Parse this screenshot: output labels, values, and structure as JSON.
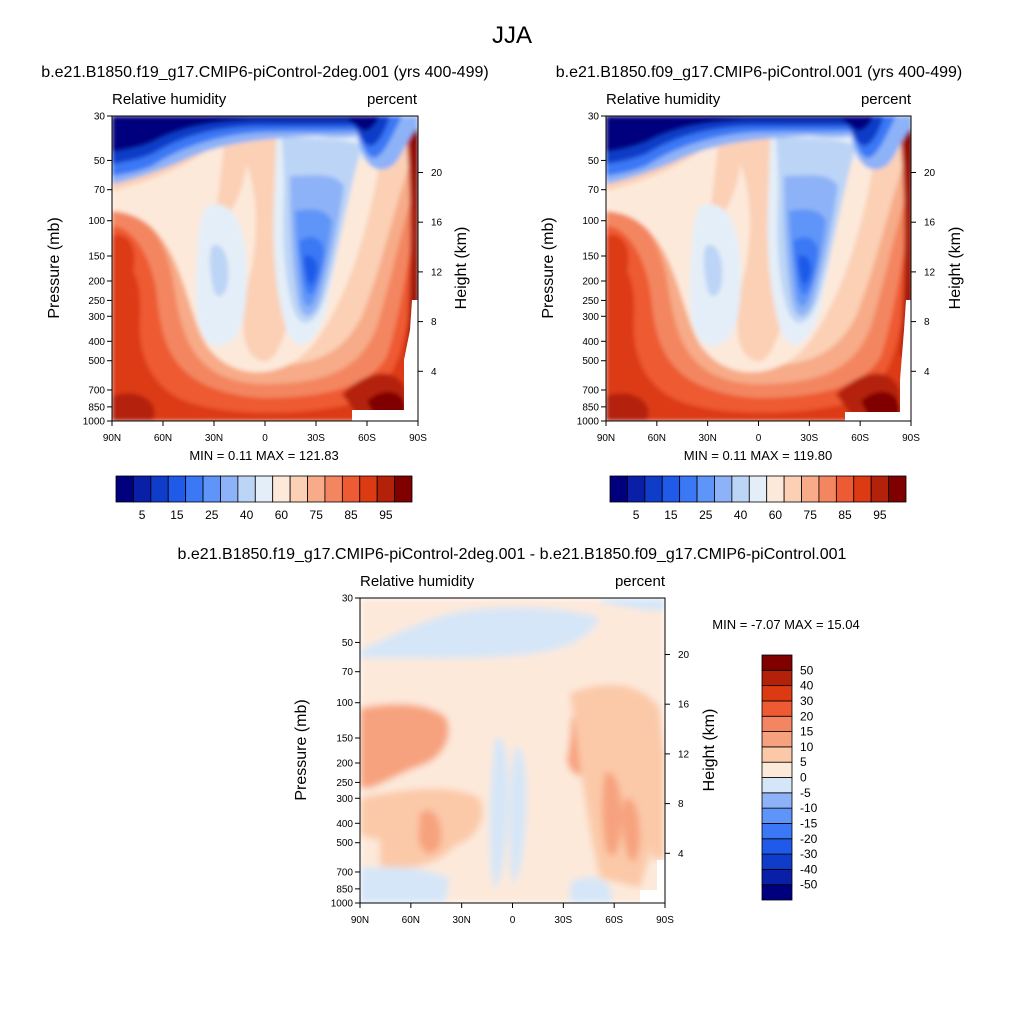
{
  "figure": {
    "title": "JJA",
    "panels": [
      {
        "title": "b.e21.B1850.f19_g17.CMIP6-piControl-2deg.001 (yrs 400-499)",
        "left_label": "Relative humidity",
        "right_label": "percent",
        "stats": "MIN =   0.11  MAX = 121.83"
      },
      {
        "title": "b.e21.B1850.f09_g17.CMIP6-piControl.001 (yrs 400-499)",
        "left_label": "Relative humidity",
        "right_label": "percent",
        "stats": "MIN =   0.11  MAX = 119.80"
      },
      {
        "title": "b.e21.B1850.f19_g17.CMIP6-piControl-2deg.001 - b.e21.B1850.f09_g17.CMIP6-piControl.001",
        "left_label": "Relative humidity",
        "right_label": "percent",
        "stats": "MIN =  -7.07  MAX =  15.04"
      }
    ],
    "axes": {
      "y_label": "Pressure (mb)",
      "y2_label": "Height (km)",
      "x_ticks": [
        "90N",
        "60N",
        "30N",
        "0",
        "30S",
        "60S",
        "90S"
      ],
      "y_ticks": [
        "30",
        "50",
        "70",
        "100",
        "150",
        "200",
        "250",
        "300",
        "400",
        "500",
        "700",
        "850",
        "1000"
      ],
      "y2_ticks": [
        "20",
        "16",
        "12",
        "8",
        "4"
      ]
    },
    "colorbars": {
      "main_labels": [
        "5",
        "15",
        "25",
        "40",
        "60",
        "75",
        "85",
        "95"
      ],
      "diff_labels": [
        "50",
        "40",
        "30",
        "20",
        "15",
        "10",
        "5",
        "0",
        "-5",
        "-10",
        "-15",
        "-20",
        "-30",
        "-40",
        "-50"
      ]
    }
  },
  "chart_data": [
    {
      "type": "heatmap",
      "title": "b.e21.B1850.f19_g17.CMIP6-piControl-2deg.001 (yrs 400-499)",
      "variable": "Relative humidity",
      "units": "percent",
      "xlabel": "",
      "ylabel": "Pressure (mb)",
      "y2label": "Height (km)",
      "xlim": [
        90,
        -90
      ],
      "ylim": [
        1000,
        30
      ],
      "yscale": "log",
      "min": 0.11,
      "max": 121.83,
      "contour_levels": [
        5,
        10,
        15,
        20,
        25,
        30,
        40,
        50,
        60,
        65,
        70,
        75,
        80,
        85,
        90,
        95
      ],
      "colors": [
        "#00007f",
        "#0a1fa8",
        "#0f3cc8",
        "#1f5ae8",
        "#3a78f5",
        "#5f95f8",
        "#8db2f7",
        "#bcd4f6",
        "#e4eef8",
        "#fde9da",
        "#fbd0b5",
        "#f7ab88",
        "#f38660",
        "#ee5a33",
        "#dc3a12",
        "#b4210a",
        "#800000"
      ]
    },
    {
      "type": "heatmap",
      "title": "b.e21.B1850.f09_g17.CMIP6-piControl.001 (yrs 400-499)",
      "variable": "Relative humidity",
      "units": "percent",
      "xlabel": "",
      "ylabel": "Pressure (mb)",
      "y2label": "Height (km)",
      "xlim": [
        90,
        -90
      ],
      "ylim": [
        1000,
        30
      ],
      "yscale": "log",
      "min": 0.11,
      "max": 119.8,
      "contour_levels": [
        5,
        10,
        15,
        20,
        25,
        30,
        40,
        50,
        60,
        65,
        70,
        75,
        80,
        85,
        90,
        95
      ],
      "colors": [
        "#00007f",
        "#0a1fa8",
        "#0f3cc8",
        "#1f5ae8",
        "#3a78f5",
        "#5f95f8",
        "#8db2f7",
        "#bcd4f6",
        "#e4eef8",
        "#fde9da",
        "#fbd0b5",
        "#f7ab88",
        "#f38660",
        "#ee5a33",
        "#dc3a12",
        "#b4210a",
        "#800000"
      ]
    },
    {
      "type": "heatmap",
      "title": "b.e21.B1850.f19_g17.CMIP6-piControl-2deg.001 - b.e21.B1850.f09_g17.CMIP6-piControl.001",
      "variable": "Relative humidity",
      "units": "percent",
      "xlabel": "",
      "ylabel": "Pressure (mb)",
      "y2label": "Height (km)",
      "xlim": [
        90,
        -90
      ],
      "ylim": [
        1000,
        30
      ],
      "yscale": "log",
      "min": -7.07,
      "max": 15.04,
      "contour_levels": [
        -50,
        -40,
        -30,
        -20,
        -15,
        -10,
        -5,
        0,
        5,
        10,
        15,
        20,
        30,
        40,
        50
      ],
      "colors": [
        "#00007f",
        "#0a1fa8",
        "#0f3cc8",
        "#1f5ae8",
        "#3a78f5",
        "#5f95f8",
        "#8db2f7",
        "#d5e6f8",
        "#fde9da",
        "#fbc9a8",
        "#f7a27e",
        "#f38660",
        "#ee5a33",
        "#dc3a12",
        "#b4210a",
        "#800000"
      ]
    }
  ]
}
